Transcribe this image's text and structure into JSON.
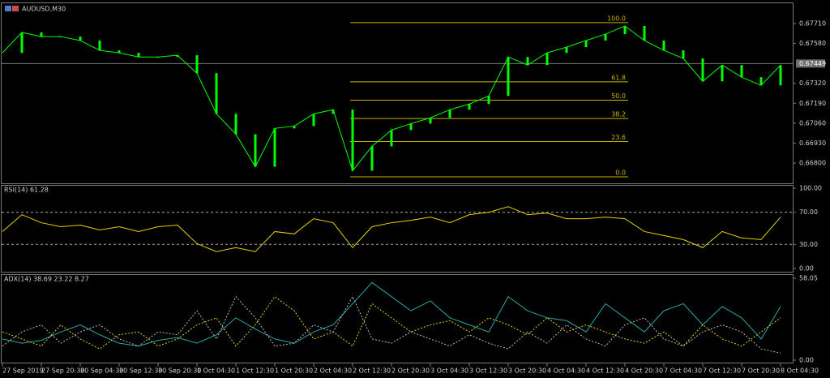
{
  "chart_data": [
    {
      "type": "line",
      "title": "AUDUSD,M30",
      "categories": [
        "27 Sep 2019",
        null,
        "27 Sep 20:30",
        null,
        "30 Sep 04:30",
        null,
        "30 Sep 12:30",
        null,
        "30 Sep 20:30",
        null,
        "1 Oct 04:30",
        null,
        "1 Oct 12:30",
        null,
        "1 Oct 20:30",
        null,
        "2 Oct 04:30",
        null,
        "2 Oct 12:30",
        null,
        "2 Oct 20:30",
        null,
        "3 Oct 04:30",
        null,
        "3 Oct 12:30",
        null,
        "3 Oct 20:30",
        null,
        "4 Oct 04:30",
        null,
        "4 Oct 12:30",
        null,
        "4 Oct 20:30",
        null,
        "7 Oct 04:30",
        null,
        "7 Oct 12:30",
        null,
        "7 Oct 20:30",
        null,
        "8 Oct 04:30"
      ],
      "values": [
        0.67519,
        0.67652,
        0.67625,
        0.67625,
        0.67599,
        0.67535,
        0.67519,
        0.67492,
        0.67492,
        0.67503,
        0.67386,
        0.67121,
        0.66988,
        0.66776,
        0.67026,
        0.67041,
        0.67121,
        0.67148,
        0.6675,
        0.66909,
        0.67015,
        0.67057,
        0.67095,
        0.67148,
        0.67185,
        0.67238,
        0.67492,
        0.67439,
        0.67519,
        0.67556,
        0.67599,
        0.67641,
        0.67694,
        0.67599,
        0.67535,
        0.67482,
        0.67333,
        0.67439,
        0.6736,
        0.67307,
        0.67439
      ],
      "color": "#00ff00",
      "ylim": [
        0.66673,
        0.67837
      ],
      "yticks": [
        {
          "value": 0.6771,
          "label": "0.67710"
        },
        {
          "value": 0.6758,
          "label": "0.67580"
        },
        {
          "value": 0.6732,
          "label": "0.67320"
        },
        {
          "value": 0.6719,
          "label": "0.67190"
        },
        {
          "value": 0.6706,
          "label": "0.67060"
        },
        {
          "value": 0.6693,
          "label": "0.66930"
        },
        {
          "value": 0.668,
          "label": "0.66800"
        }
      ],
      "current_price": 0.67449,
      "fibonacci": {
        "levels": [
          "100.0",
          "61.8",
          "50.0",
          "38.2",
          "23.6",
          "0.0"
        ],
        "prices": [
          0.67716,
          0.6733,
          0.6721,
          0.6709,
          0.6694,
          0.6671
        ],
        "color": "#c8b400"
      }
    },
    {
      "type": "line",
      "title": "RSI(14) 61.28",
      "values": [
        46,
        67,
        57,
        52,
        54,
        48,
        52,
        46,
        52,
        54,
        31,
        21,
        26,
        21,
        46,
        43,
        62,
        57,
        26,
        52,
        57,
        60,
        64,
        57,
        67,
        70,
        77,
        67,
        69,
        62,
        62,
        64,
        62,
        46,
        41,
        36,
        26,
        46,
        38,
        36,
        64
      ],
      "color": "#e6d200",
      "ylim": [
        0,
        100
      ],
      "yticks": [
        {
          "value": 100,
          "label": "100.00"
        },
        {
          "value": 70,
          "label": "70.00"
        },
        {
          "value": 30,
          "label": "30.00"
        },
        {
          "value": 0,
          "label": "0.00"
        }
      ],
      "levels": [
        70,
        30
      ]
    },
    {
      "type": "line",
      "title": "ADX(14) 38.69 23.22 8.27",
      "series": [
        {
          "color": "#2aa6a6",
          "dash": false,
          "values": [
            15,
            12,
            14,
            20,
            25,
            18,
            12,
            10,
            14,
            16,
            12,
            18,
            30,
            22,
            15,
            12,
            20,
            25,
            40,
            55,
            45,
            35,
            42,
            30,
            25,
            20,
            45,
            35,
            30,
            28,
            20,
            40,
            30,
            20,
            35,
            40,
            25,
            38,
            30,
            15,
            38
          ]
        },
        {
          "color": "#e6d200",
          "dash": true,
          "values": [
            20,
            15,
            10,
            25,
            15,
            8,
            18,
            20,
            10,
            15,
            25,
            30,
            10,
            25,
            45,
            35,
            15,
            20,
            10,
            40,
            30,
            20,
            25,
            28,
            20,
            30,
            25,
            18,
            30,
            20,
            25,
            20,
            15,
            12,
            20,
            10,
            25,
            15,
            10,
            20,
            30
          ]
        },
        {
          "color": "#bbbbbb",
          "dash": true,
          "values": [
            10,
            20,
            25,
            12,
            20,
            25,
            15,
            10,
            20,
            18,
            35,
            15,
            45,
            30,
            10,
            12,
            25,
            20,
            45,
            15,
            12,
            20,
            15,
            10,
            18,
            12,
            8,
            20,
            12,
            25,
            15,
            10,
            25,
            30,
            15,
            10,
            20,
            25,
            20,
            8,
            5
          ]
        }
      ],
      "ylim": [
        0,
        58.05
      ],
      "yticks": [
        58.05,
        {
          "value": 0,
          "label": "0.00"
        }
      ]
    }
  ]
}
